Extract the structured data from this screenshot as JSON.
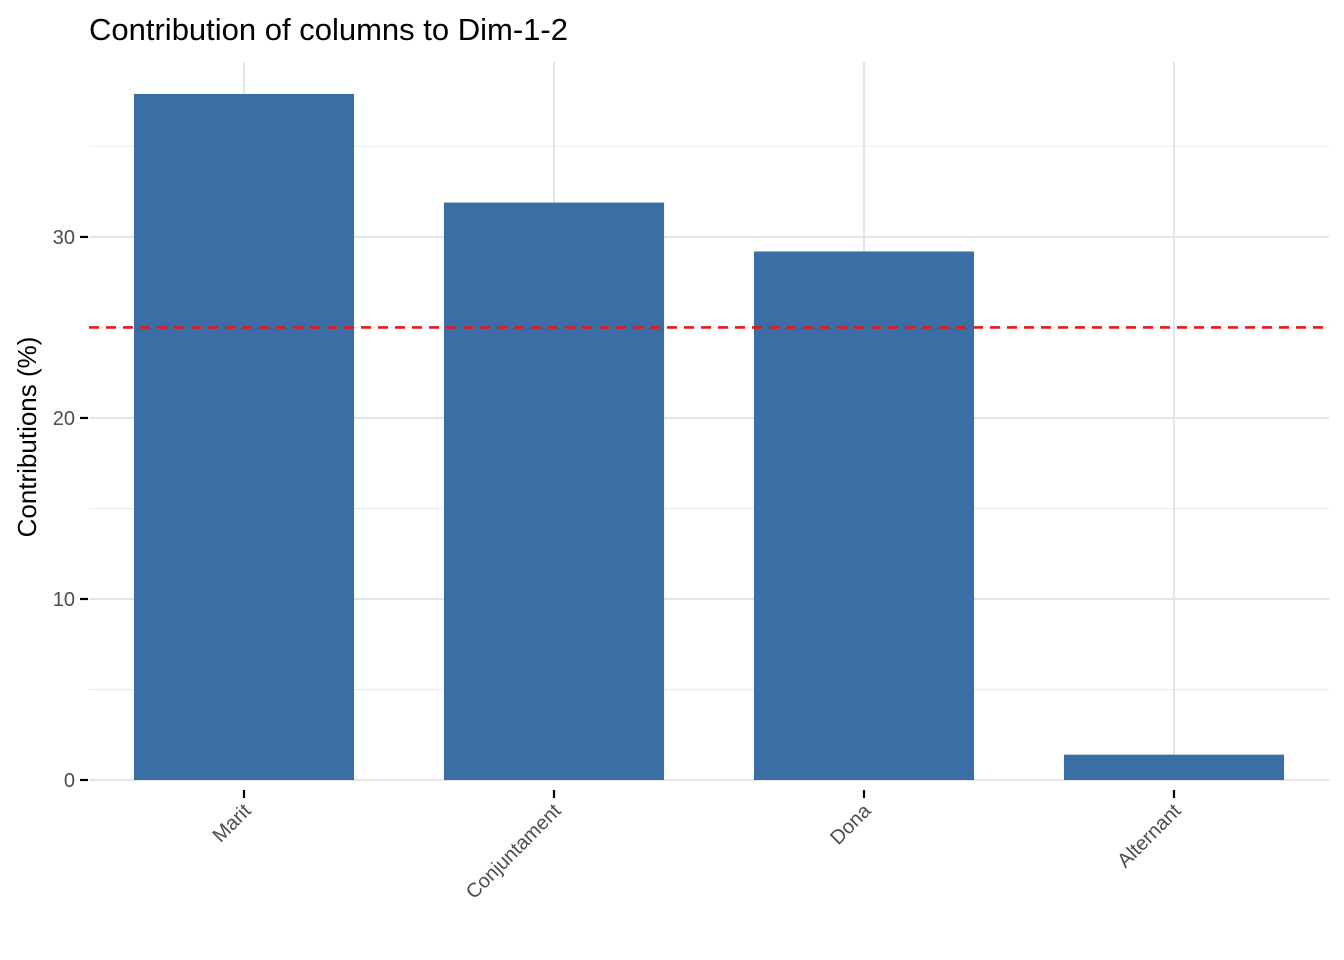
{
  "chart_data": {
    "type": "bar",
    "title": "Contribution of columns to Dim-1-2",
    "xlabel": "",
    "ylabel": "Contributions (%)",
    "categories": [
      "Marit",
      "Conjuntament",
      "Dona",
      "Alternant"
    ],
    "values": [
      37.9,
      31.9,
      29.2,
      1.4
    ],
    "ylim": [
      0,
      39.5
    ],
    "yticks": [
      0,
      10,
      20,
      30
    ],
    "reference_line": {
      "value": 25,
      "style": "dashed",
      "color": "#e41a1c"
    },
    "bar_color": "#3a6ea5",
    "grid": true,
    "legend": "none"
  }
}
